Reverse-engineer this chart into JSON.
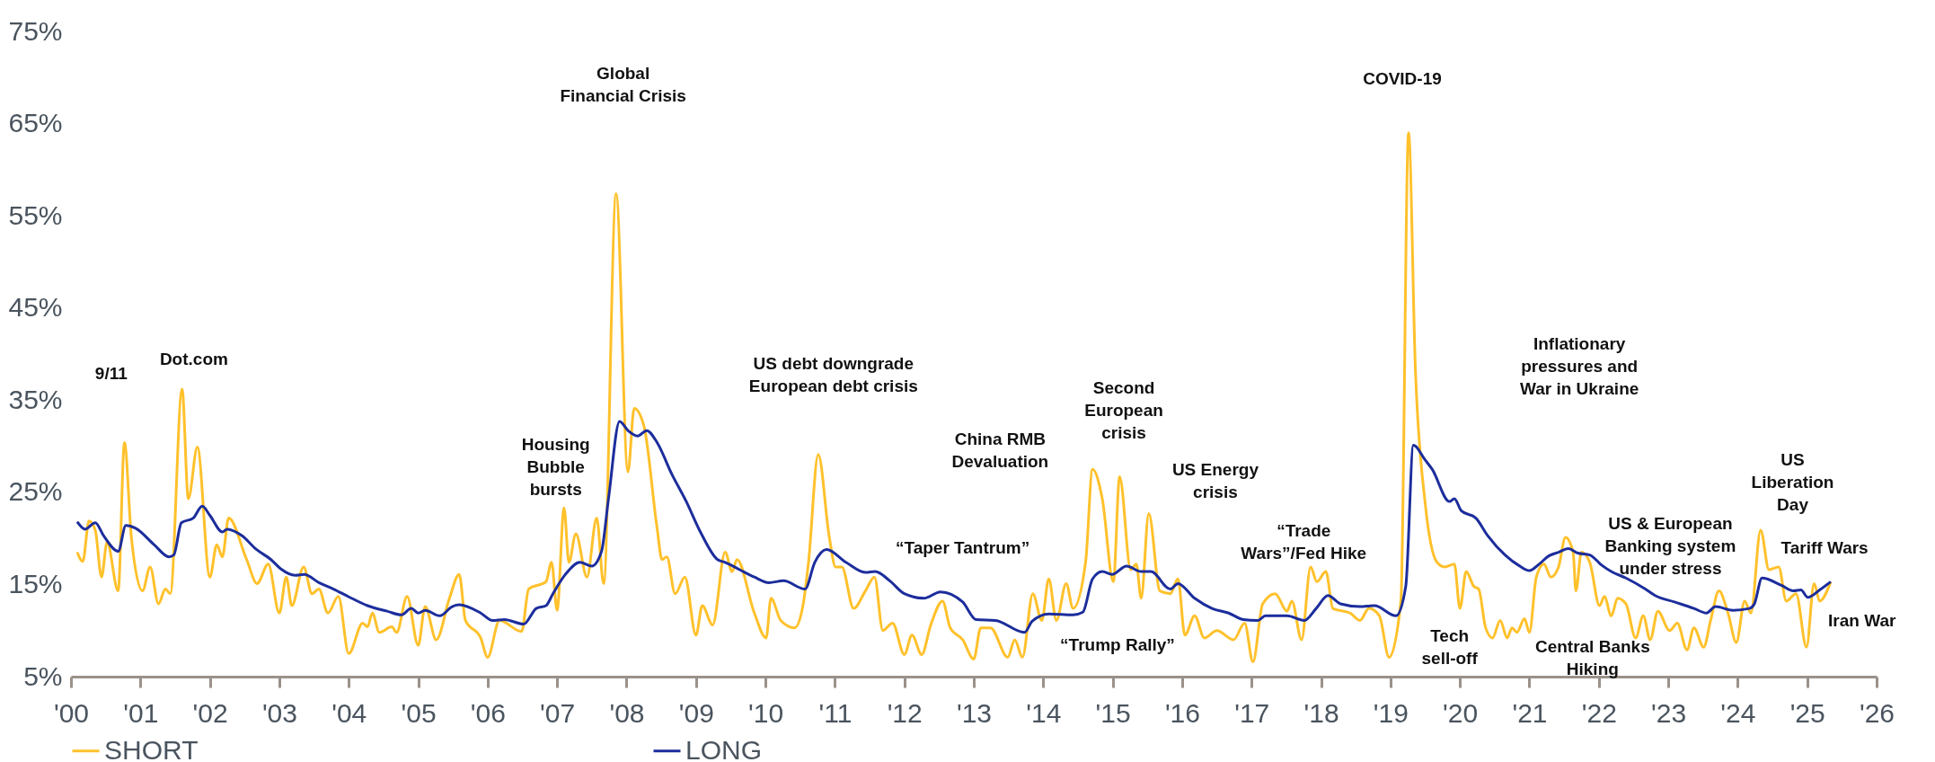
{
  "chart_data": {
    "type": "line",
    "xlim": [
      2000,
      2026
    ],
    "xticks": [
      {
        "value": 2000,
        "label": "'00"
      },
      {
        "value": 2001,
        "label": "'01"
      },
      {
        "value": 2002,
        "label": "'02"
      },
      {
        "value": 2003,
        "label": "'03"
      },
      {
        "value": 2004,
        "label": "'04"
      },
      {
        "value": 2005,
        "label": "'05"
      },
      {
        "value": 2006,
        "label": "'06"
      },
      {
        "value": 2007,
        "label": "'07"
      },
      {
        "value": 2008,
        "label": "'08"
      },
      {
        "value": 2009,
        "label": "'09"
      },
      {
        "value": 2010,
        "label": "'10"
      },
      {
        "value": 2011,
        "label": "'11"
      },
      {
        "value": 2012,
        "label": "'12"
      },
      {
        "value": 2013,
        "label": "'13"
      },
      {
        "value": 2014,
        "label": "'14"
      },
      {
        "value": 2015,
        "label": "'15"
      },
      {
        "value": 2016,
        "label": "'16"
      },
      {
        "value": 2017,
        "label": "'17"
      },
      {
        "value": 2018,
        "label": "'18"
      },
      {
        "value": 2019,
        "label": "'19"
      },
      {
        "value": 2020,
        "label": "'20"
      },
      {
        "value": 2021,
        "label": "'21"
      },
      {
        "value": 2022,
        "label": "'22"
      },
      {
        "value": 2023,
        "label": "'23"
      },
      {
        "value": 2024,
        "label": "'24"
      },
      {
        "value": 2025,
        "label": "'25"
      },
      {
        "value": 2026,
        "label": "'26"
      }
    ],
    "ylim": [
      5,
      75
    ],
    "yticks": [
      {
        "value": 5,
        "label": "5%"
      },
      {
        "value": 15,
        "label": "15%"
      },
      {
        "value": 25,
        "label": "25%"
      },
      {
        "value": 35,
        "label": "35%"
      },
      {
        "value": 45,
        "label": "45%"
      },
      {
        "value": 55,
        "label": "55%"
      },
      {
        "value": 65,
        "label": "65%"
      },
      {
        "value": 75,
        "label": "75%"
      }
    ],
    "legend": "bottom",
    "line_style": "solid",
    "series": [
      {
        "name": "SHORT",
        "color": "#ffc12b",
        "x": [
          2000.09,
          2000.17,
          2000.26,
          2000.35,
          2000.44,
          2000.52,
          2000.68,
          2000.77,
          2000.87,
          2001.03,
          2001.14,
          2001.26,
          2001.36,
          2001.43,
          2001.6,
          2001.69,
          2001.82,
          2002.0,
          2002.1,
          2002.18,
          2002.27,
          2002.53,
          2002.68,
          2002.84,
          2003.0,
          2003.1,
          2003.18,
          2003.35,
          2003.47,
          2003.57,
          2003.7,
          2003.85,
          2004.0,
          2004.2,
          2004.27,
          2004.34,
          2004.44,
          2004.62,
          2004.69,
          2004.84,
          2005.0,
          2005.1,
          2005.26,
          2005.45,
          2005.59,
          2005.68,
          2005.9,
          2006.0,
          2006.17,
          2006.49,
          2006.59,
          2006.84,
          2006.92,
          2007.0,
          2007.1,
          2007.17,
          2007.27,
          2007.43,
          2007.57,
          2007.67,
          2007.85,
          2008.02,
          2008.11,
          2008.25,
          2008.44,
          2008.51,
          2008.58,
          2008.7,
          2008.84,
          2009.0,
          2009.09,
          2009.24,
          2009.42,
          2009.52,
          2009.59,
          2009.84,
          2010.01,
          2010.08,
          2010.22,
          2010.42,
          2010.54,
          2010.62,
          2010.76,
          2010.92,
          2011.01,
          2011.1,
          2011.27,
          2011.44,
          2011.57,
          2011.69,
          2011.83,
          2012.0,
          2012.11,
          2012.25,
          2012.38,
          2012.55,
          2012.66,
          2012.84,
          2013.0,
          2013.1,
          2013.24,
          2013.49,
          2013.59,
          2013.7,
          2013.85,
          2013.98,
          2014.08,
          2014.19,
          2014.33,
          2014.43,
          2014.61,
          2014.71,
          2014.85,
          2015.01,
          2015.1,
          2015.26,
          2015.34,
          2015.41,
          2015.52,
          2015.68,
          2015.83,
          2015.94,
          2016.04,
          2016.18,
          2016.32,
          2016.5,
          2016.74,
          2016.9,
          2017.02,
          2017.16,
          2017.34,
          2017.51,
          2017.58,
          2017.72,
          2017.85,
          2017.94,
          2018.07,
          2018.17,
          2018.42,
          2018.56,
          2018.69,
          2018.84,
          2018.98,
          2019.15,
          2019.26,
          2019.36,
          2019.5,
          2019.67,
          2019.78,
          2019.92,
          2020.0,
          2020.09,
          2020.2,
          2020.27,
          2020.37,
          2020.47,
          2020.58,
          2020.68,
          2020.75,
          2020.82,
          2020.93,
          2021.0,
          2021.1,
          2021.21,
          2021.31,
          2021.42,
          2021.52,
          2021.63,
          2021.67,
          2021.75,
          2021.87,
          2022.01,
          2022.08,
          2022.18,
          2022.27,
          2022.39,
          2022.53,
          2022.64,
          2022.74,
          2022.85,
          2023.02,
          2023.13,
          2023.27,
          2023.37,
          2023.51,
          2023.61,
          2023.73,
          2023.86,
          2023.98,
          2024.1,
          2024.19,
          2024.33,
          2024.45,
          2024.59,
          2024.7,
          2024.84,
          2024.99,
          2025.1,
          2025.18,
          2025.34
        ],
        "values": [
          18.5,
          17.5,
          21.9,
          20.9,
          15.8,
          19.6,
          14.3,
          30.4,
          20.1,
          14.3,
          16.9,
          12.9,
          14.5,
          14.0,
          36.2,
          24.3,
          29.9,
          15.8,
          19.3,
          18.0,
          22.2,
          17.7,
          15.1,
          17.2,
          11.9,
          15.8,
          12.7,
          16.9,
          14.0,
          14.5,
          11.9,
          13.7,
          7.5,
          10.8,
          10.4,
          11.9,
          9.8,
          10.4,
          9.8,
          13.7,
          8.4,
          12.6,
          9.0,
          13.5,
          16.1,
          11.1,
          9.2,
          7.1,
          11.1,
          9.9,
          14.5,
          15.3,
          17.4,
          12.2,
          23.3,
          17.4,
          20.5,
          15.8,
          22.2,
          15.1,
          57.4,
          27.2,
          34.1,
          32.2,
          21.1,
          17.7,
          18.0,
          14.0,
          15.8,
          9.5,
          12.7,
          10.6,
          18.5,
          16.4,
          17.7,
          11.9,
          9.2,
          13.5,
          11.1,
          10.3,
          12.7,
          17.4,
          29.1,
          20.1,
          16.9,
          16.9,
          12.4,
          14.3,
          15.8,
          10.0,
          10.8,
          7.4,
          9.5,
          7.4,
          10.6,
          13.2,
          10.3,
          9.0,
          6.9,
          10.3,
          10.3,
          7.1,
          9.0,
          7.1,
          14.0,
          11.1,
          15.6,
          11.1,
          15.1,
          12.4,
          17.4,
          27.5,
          24.3,
          15.3,
          26.7,
          16.6,
          17.2,
          13.5,
          22.7,
          14.3,
          14.0,
          15.6,
          9.5,
          11.6,
          9.2,
          10.0,
          9.0,
          10.8,
          6.6,
          12.9,
          14.0,
          12.1,
          13.2,
          9.0,
          16.9,
          15.3,
          16.4,
          12.4,
          11.9,
          11.1,
          12.4,
          11.6,
          7.1,
          13.2,
          64.0,
          38.1,
          23.8,
          17.4,
          16.9,
          17.2,
          12.4,
          16.4,
          14.8,
          14.5,
          10.3,
          9.2,
          11.1,
          9.2,
          10.3,
          9.8,
          11.3,
          9.8,
          15.8,
          17.2,
          15.8,
          16.9,
          20.1,
          18.5,
          14.3,
          18.5,
          17.4,
          12.7,
          13.7,
          11.6,
          13.5,
          12.9,
          9.2,
          11.6,
          9.0,
          12.1,
          10.0,
          10.8,
          7.9,
          10.3,
          8.2,
          11.1,
          14.3,
          11.9,
          8.7,
          13.2,
          11.9,
          20.9,
          16.6,
          16.9,
          13.2,
          14.0,
          8.2,
          15.1,
          13.2,
          15.3
        ]
      },
      {
        "name": "LONG",
        "color": "#1c2d9c",
        "x": [
          2000.09,
          2000.2,
          2000.35,
          2000.47,
          2000.68,
          2000.79,
          2000.93,
          2001.2,
          2001.41,
          2001.48,
          2001.59,
          2001.76,
          2001.89,
          2002.0,
          2002.18,
          2002.25,
          2002.46,
          2002.67,
          2002.88,
          2003.02,
          2003.23,
          2003.36,
          2003.57,
          2003.78,
          2003.99,
          2004.27,
          2004.55,
          2004.76,
          2004.9,
          2005.0,
          2005.1,
          2005.31,
          2005.49,
          2005.59,
          2005.9,
          2006.07,
          2006.24,
          2006.52,
          2006.7,
          2006.84,
          2006.94,
          2007.12,
          2007.33,
          2007.5,
          2007.64,
          2007.74,
          2007.9,
          2008.02,
          2008.16,
          2008.29,
          2008.44,
          2008.65,
          2008.86,
          2009.07,
          2009.31,
          2009.42,
          2009.63,
          2009.84,
          2010.05,
          2010.26,
          2010.57,
          2010.71,
          2010.88,
          2011.16,
          2011.44,
          2011.58,
          2011.79,
          2012.0,
          2012.28,
          2012.52,
          2012.84,
          2013.03,
          2013.31,
          2013.73,
          2013.84,
          2014.08,
          2014.43,
          2014.57,
          2014.71,
          2014.85,
          2014.99,
          2015.2,
          2015.41,
          2015.55,
          2015.83,
          2015.94,
          2016.18,
          2016.43,
          2016.67,
          2016.88,
          2017.09,
          2017.2,
          2017.51,
          2017.76,
          2017.93,
          2018.1,
          2018.28,
          2018.56,
          2018.77,
          2019.08,
          2019.22,
          2019.33,
          2019.5,
          2019.6,
          2019.85,
          2019.92,
          2020.02,
          2020.23,
          2020.4,
          2020.65,
          2020.86,
          2021.0,
          2021.14,
          2021.28,
          2021.42,
          2021.56,
          2021.7,
          2021.87,
          2022.04,
          2022.18,
          2022.39,
          2022.67,
          2022.81,
          2023.09,
          2023.37,
          2023.55,
          2023.68,
          2023.93,
          2024.17,
          2024.24,
          2024.35,
          2024.63,
          2024.8,
          2024.91,
          2025.01,
          2025.18,
          2025.34
        ],
        "values": [
          21.8,
          21.0,
          21.7,
          20.3,
          18.6,
          21.4,
          21.1,
          19.3,
          18.0,
          18.2,
          21.7,
          22.2,
          23.5,
          22.5,
          20.7,
          21.0,
          20.3,
          18.8,
          17.7,
          16.7,
          16.0,
          16.1,
          15.2,
          14.5,
          13.7,
          12.7,
          12.1,
          11.7,
          12.4,
          11.9,
          12.2,
          11.6,
          12.6,
          12.8,
          11.9,
          11.1,
          11.2,
          10.7,
          12.4,
          12.7,
          14.0,
          16.1,
          17.4,
          17.0,
          18.6,
          24.3,
          32.7,
          31.7,
          31.1,
          31.7,
          30.4,
          27.0,
          24.0,
          20.6,
          17.7,
          17.4,
          16.6,
          15.8,
          15.2,
          15.4,
          14.5,
          17.4,
          18.8,
          17.4,
          16.3,
          16.4,
          15.4,
          14.0,
          13.5,
          14.2,
          13.1,
          11.2,
          11.1,
          9.8,
          11.0,
          11.8,
          11.7,
          12.0,
          15.6,
          16.4,
          16.1,
          17.0,
          16.4,
          16.4,
          14.5,
          15.1,
          13.5,
          12.4,
          11.9,
          11.2,
          11.1,
          11.6,
          11.6,
          11.1,
          12.4,
          13.8,
          12.9,
          12.6,
          12.7,
          11.6,
          14.8,
          30.1,
          28.5,
          27.5,
          24.0,
          24.3,
          23.0,
          22.2,
          20.3,
          18.2,
          17.0,
          16.5,
          17.2,
          18.1,
          18.5,
          18.9,
          18.4,
          18.2,
          17.1,
          16.4,
          15.7,
          14.5,
          13.8,
          13.1,
          12.4,
          11.9,
          12.6,
          12.2,
          12.4,
          12.9,
          15.7,
          14.9,
          14.3,
          14.4,
          13.6,
          14.4,
          15.3
        ]
      }
    ],
    "annotations": [
      "9/11",
      "Dot.com",
      "Housing\nBubble\nbursts",
      "Global\nFinancial Crisis",
      "US debt downgrade\nEuropean debt crisis",
      "“Taper Tantrum”",
      "China RMB\nDevaluation",
      "Second\nEuropean\ncrisis",
      "“Trump Rally”",
      "US Energy\ncrisis",
      "“Trade\nWars”/Fed Hike",
      "COVID-19",
      "Tech\nsell-off",
      "Inflationary\npressures and\nWar in Ukraine",
      "Central Banks\nHiking",
      "US & European\nBanking system\nunder stress",
      "US\nLiberation\nDay",
      "Tariff Wars",
      "Iran War"
    ]
  }
}
